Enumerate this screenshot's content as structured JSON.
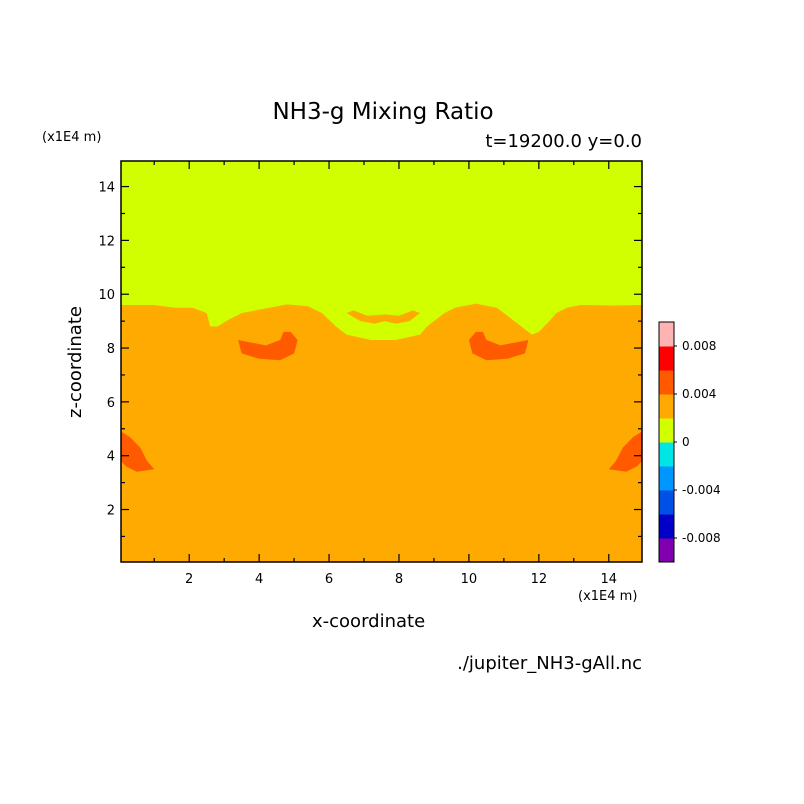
{
  "chart_data": {
    "type": "heatmap",
    "title": "NH3-g Mixing Ratio",
    "subtitle": "t=19200.0 y=0.0",
    "xlabel": "x-coordinate",
    "ylabel": "z-coordinate",
    "x_unit": "(x1E4 m)",
    "y_unit": "(x1E4 m)",
    "source_file": "./jupiter_NH3-gAll.nc",
    "xlim": [
      0.05,
      14.95
    ],
    "ylim": [
      0.05,
      14.95
    ],
    "x_ticks": [
      2,
      4,
      6,
      8,
      10,
      12,
      14
    ],
    "y_ticks": [
      2,
      4,
      6,
      8,
      10,
      12,
      14
    ],
    "grid": false,
    "colorbar": {
      "position": "right",
      "levels": [
        -0.01,
        -0.008,
        -0.006,
        -0.004,
        -0.002,
        0,
        0.002,
        0.004,
        0.006,
        0.008,
        0.01
      ],
      "colors": [
        "#8000b0",
        "#0000c8",
        "#0050e6",
        "#0096ff",
        "#00e6e6",
        "#d2ff00",
        "#ffaa00",
        "#ff5a00",
        "#ff0000",
        "#ffb4b4"
      ],
      "tick_values": [
        0.008,
        0.004,
        0,
        -0.004,
        -0.008
      ],
      "tick_labels": [
        "0.008",
        "0.004",
        "0",
        "-0.004",
        "-0.008"
      ]
    },
    "field": {
      "background_value": 0.003,
      "regions": [
        {
          "value": 0.001,
          "description": "low-concentration layer above the boundary",
          "polygon": [
            [
              0.05,
              14.95
            ],
            [
              14.95,
              14.95
            ],
            [
              14.95,
              9.6
            ],
            [
              14.2,
              9.58
            ],
            [
              13.2,
              9.6
            ],
            [
              12.8,
              9.5
            ],
            [
              12.5,
              9.3
            ],
            [
              12.3,
              9.0
            ],
            [
              12.0,
              8.6
            ],
            [
              11.8,
              8.5
            ],
            [
              11.3,
              9.0
            ],
            [
              10.8,
              9.5
            ],
            [
              10.2,
              9.65
            ],
            [
              9.6,
              9.5
            ],
            [
              9.3,
              9.3
            ],
            [
              8.8,
              8.8
            ],
            [
              8.6,
              8.5
            ],
            [
              7.9,
              8.3
            ],
            [
              7.2,
              8.3
            ],
            [
              6.5,
              8.5
            ],
            [
              6.2,
              8.8
            ],
            [
              5.8,
              9.3
            ],
            [
              5.4,
              9.55
            ],
            [
              4.8,
              9.62
            ],
            [
              4.3,
              9.5
            ],
            [
              3.9,
              9.4
            ],
            [
              3.5,
              9.3
            ],
            [
              3.2,
              9.1
            ],
            [
              2.8,
              8.8
            ],
            [
              2.6,
              8.8
            ],
            [
              2.5,
              9.3
            ],
            [
              2.1,
              9.5
            ],
            [
              1.6,
              9.5
            ],
            [
              1.0,
              9.6
            ],
            [
              0.05,
              9.6
            ]
          ]
        },
        {
          "value": 0.003,
          "description": "left arc inside upper layer",
          "polygon": [
            [
              4.1,
              8.9
            ],
            [
              4.6,
              9.0
            ],
            [
              5.2,
              9.1
            ],
            [
              5.7,
              9.0
            ],
            [
              5.5,
              8.9
            ],
            [
              5.0,
              8.8
            ],
            [
              4.5,
              8.75
            ]
          ]
        },
        {
          "value": 0.003,
          "description": "right arc inside upper layer",
          "polygon": [
            [
              11.0,
              8.9
            ],
            [
              10.5,
              9.0
            ],
            [
              9.9,
              9.1
            ],
            [
              9.4,
              9.0
            ],
            [
              9.6,
              8.9
            ],
            [
              10.1,
              8.8
            ],
            [
              10.6,
              8.75
            ]
          ]
        },
        {
          "value": 0.003,
          "description": "central arch inside upper layer",
          "polygon": [
            [
              6.5,
              9.3
            ],
            [
              6.9,
              9.0
            ],
            [
              7.3,
              8.9
            ],
            [
              7.6,
              9.0
            ],
            [
              7.9,
              8.9
            ],
            [
              8.3,
              9.0
            ],
            [
              8.6,
              9.3
            ],
            [
              8.4,
              9.4
            ],
            [
              8.0,
              9.2
            ],
            [
              7.6,
              9.25
            ],
            [
              7.1,
              9.2
            ],
            [
              6.7,
              9.4
            ]
          ]
        },
        {
          "value": 0.005,
          "description": "left eddy",
          "polygon": [
            [
              3.4,
              8.3
            ],
            [
              3.5,
              7.8
            ],
            [
              4.0,
              7.6
            ],
            [
              4.6,
              7.55
            ],
            [
              5.0,
              7.8
            ],
            [
              5.1,
              8.3
            ],
            [
              4.9,
              8.6
            ],
            [
              4.7,
              8.6
            ],
            [
              4.6,
              8.3
            ],
            [
              4.2,
              8.1
            ],
            [
              3.8,
              8.2
            ]
          ]
        },
        {
          "value": 0.005,
          "description": "right eddy",
          "polygon": [
            [
              11.7,
              8.3
            ],
            [
              11.6,
              7.8
            ],
            [
              11.1,
              7.6
            ],
            [
              10.5,
              7.55
            ],
            [
              10.1,
              7.8
            ],
            [
              10.0,
              8.3
            ],
            [
              10.2,
              8.6
            ],
            [
              10.4,
              8.6
            ],
            [
              10.5,
              8.3
            ],
            [
              10.9,
              8.1
            ],
            [
              11.3,
              8.2
            ]
          ]
        },
        {
          "value": 0.005,
          "description": "left edge lobe",
          "polygon": [
            [
              0.05,
              4.9
            ],
            [
              0.3,
              4.7
            ],
            [
              0.6,
              4.3
            ],
            [
              0.8,
              3.8
            ],
            [
              1.0,
              3.5
            ],
            [
              0.5,
              3.4
            ],
            [
              0.2,
              3.6
            ],
            [
              0.05,
              3.8
            ]
          ]
        },
        {
          "value": 0.005,
          "description": "right edge lobe",
          "polygon": [
            [
              14.95,
              4.9
            ],
            [
              14.7,
              4.7
            ],
            [
              14.4,
              4.3
            ],
            [
              14.2,
              3.8
            ],
            [
              14.0,
              3.5
            ],
            [
              14.5,
              3.4
            ],
            [
              14.8,
              3.6
            ],
            [
              14.95,
              3.8
            ]
          ]
        }
      ]
    }
  }
}
